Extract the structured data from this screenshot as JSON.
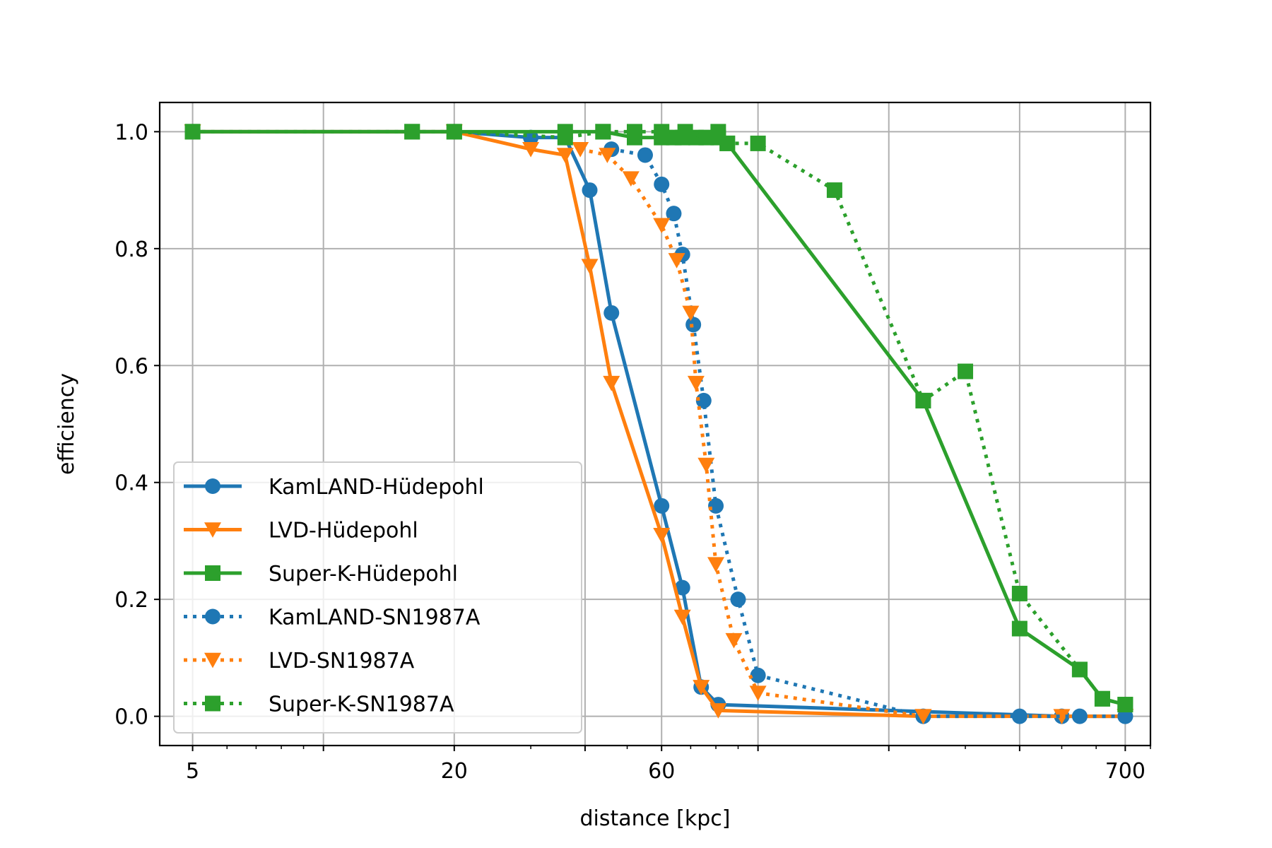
{
  "chart_data": {
    "type": "line",
    "title": "",
    "xlabel": "distance [kpc]",
    "ylabel": "efficiency",
    "xscale": "log",
    "xlim": [
      4.2,
      800
    ],
    "ylim": [
      -0.05,
      1.05
    ],
    "grid": true,
    "legend_position": "lower-left",
    "xticks": [
      5,
      20,
      60,
      700
    ],
    "xtick_labels": [
      "5",
      "20",
      "60",
      "700"
    ],
    "xticks_hidden": [
      10,
      40,
      100,
      200,
      400
    ],
    "yticks": [
      0.0,
      0.2,
      0.4,
      0.6,
      0.8,
      1.0
    ],
    "ytick_labels": [
      "0.0",
      "0.2",
      "0.4",
      "0.6",
      "0.8",
      "1.0"
    ],
    "series": [
      {
        "name": "KamLAND-Hüdepohl",
        "color": "#1f77b4",
        "marker": "circle",
        "linestyle": "solid",
        "x": [
          5,
          20,
          30,
          36,
          41,
          46,
          60,
          67,
          74,
          81,
          500,
          700
        ],
        "y": [
          1.0,
          1.0,
          0.99,
          0.99,
          0.9,
          0.69,
          0.36,
          0.22,
          0.05,
          0.02,
          0.0,
          0.0
        ]
      },
      {
        "name": "LVD-Hüdepohl",
        "color": "#ff7f0e",
        "marker": "triangle-down",
        "linestyle": "solid",
        "x": [
          5,
          20,
          30,
          36,
          41,
          46,
          60,
          67,
          74,
          81,
          240,
          500,
          700
        ],
        "y": [
          1.0,
          1.0,
          0.97,
          0.96,
          0.77,
          0.57,
          0.31,
          0.17,
          0.05,
          0.01,
          0.0,
          0.0,
          0.0
        ]
      },
      {
        "name": "Super-K-Hüdepohl",
        "color": "#2ca02c",
        "marker": "square",
        "linestyle": "solid",
        "x": [
          5,
          16,
          20,
          36,
          44,
          52,
          60,
          64,
          67,
          72,
          81,
          85,
          240,
          400,
          550,
          620,
          700
        ],
        "y": [
          1.0,
          1.0,
          1.0,
          1.0,
          1.0,
          0.99,
          0.99,
          0.99,
          0.99,
          0.99,
          0.99,
          0.98,
          0.54,
          0.15,
          0.08,
          0.03,
          0.02
        ]
      },
      {
        "name": "KamLAND-SN1987A",
        "color": "#1f77b4",
        "marker": "circle",
        "linestyle": "dotted",
        "x": [
          46,
          55,
          60,
          64,
          67,
          71,
          75,
          80,
          90,
          100,
          240,
          400,
          550,
          700
        ],
        "y": [
          0.97,
          0.96,
          0.91,
          0.86,
          0.79,
          0.67,
          0.54,
          0.36,
          0.2,
          0.07,
          0.0,
          0.0,
          0.0,
          0.0
        ]
      },
      {
        "name": "LVD-SN1987A",
        "color": "#ff7f0e",
        "marker": "triangle-down",
        "linestyle": "dotted",
        "x": [
          39,
          45,
          51,
          60,
          65,
          70,
          72,
          76,
          80,
          88,
          100,
          240
        ],
        "y": [
          0.97,
          0.96,
          0.92,
          0.84,
          0.78,
          0.69,
          0.57,
          0.43,
          0.26,
          0.13,
          0.04,
          0.0
        ]
      },
      {
        "name": "Super-K-SN1987A",
        "color": "#2ca02c",
        "marker": "square",
        "linestyle": "dotted",
        "x": [
          5,
          16,
          20,
          36,
          44,
          52,
          60,
          68,
          76,
          81,
          85,
          100,
          150,
          240,
          300,
          400,
          550,
          620,
          700
        ],
        "y": [
          1.0,
          1.0,
          1.0,
          0.99,
          1.0,
          1.0,
          1.0,
          1.0,
          0.99,
          1.0,
          0.98,
          0.98,
          0.9,
          0.54,
          0.59,
          0.21,
          0.08,
          0.03,
          0.02
        ]
      }
    ]
  }
}
